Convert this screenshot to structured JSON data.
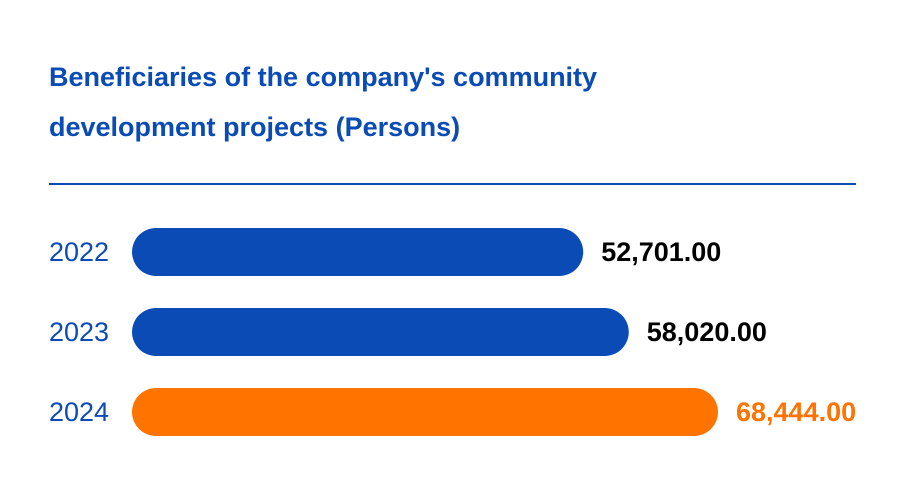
{
  "chart_data": {
    "type": "bar",
    "orientation": "horizontal",
    "title": "Beneficiaries of the company's community\ndevelopment projects (Persons)",
    "categories": [
      "2022",
      "2023",
      "2024"
    ],
    "values": [
      52701.0,
      58020.0,
      68444.0
    ],
    "value_labels": [
      "52,701.00",
      "58,020.00",
      "68,444.00"
    ],
    "bar_colors": [
      "#0a4bb5",
      "#0a4bb5",
      "#ff7300"
    ],
    "label_colors": [
      "#000000",
      "#000000",
      "#ff7300"
    ],
    "category_label_color": "#0a4bb5",
    "title_color": "#0a4bb5",
    "grid": false,
    "legend": "none"
  }
}
